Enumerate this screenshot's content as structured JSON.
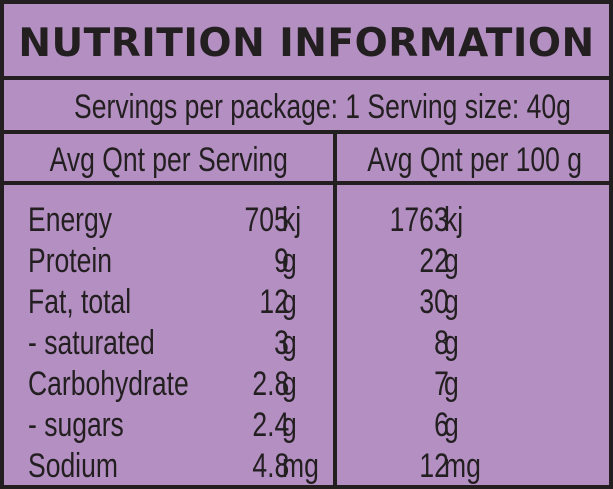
{
  "label": {
    "title": "NUTRITION INFORMATION",
    "servings_text": "Servings per package: 1 Serving size:  40g",
    "col_per_serving": "Avg Qnt per Serving",
    "col_per_100g": "Avg Qnt per 100 g"
  },
  "colors": {
    "background": "#b38fc2",
    "ink": "#231f20"
  },
  "rows": [
    {
      "nutrient": "Energy",
      "serving_value": "705",
      "serving_unit": "kj",
      "per100_value": "1763",
      "per100_unit": "kj"
    },
    {
      "nutrient": "Protein",
      "serving_value": "9",
      "serving_unit": "g",
      "per100_value": "22",
      "per100_unit": "g"
    },
    {
      "nutrient": "Fat, total",
      "serving_value": "12",
      "serving_unit": "g",
      "per100_value": "30",
      "per100_unit": "g"
    },
    {
      "nutrient": "- saturated",
      "serving_value": "3",
      "serving_unit": "g",
      "per100_value": "8",
      "per100_unit": "g"
    },
    {
      "nutrient": "Carbohydrate",
      "serving_value": "2.8",
      "serving_unit": "g",
      "per100_value": "7",
      "per100_unit": "g"
    },
    {
      "nutrient": "- sugars",
      "serving_value": "2.4",
      "serving_unit": "g",
      "per100_value": "6",
      "per100_unit": "g"
    },
    {
      "nutrient": "Sodium",
      "serving_value": "4.8",
      "serving_unit": "mg",
      "per100_value": "12",
      "per100_unit": "mg"
    }
  ]
}
